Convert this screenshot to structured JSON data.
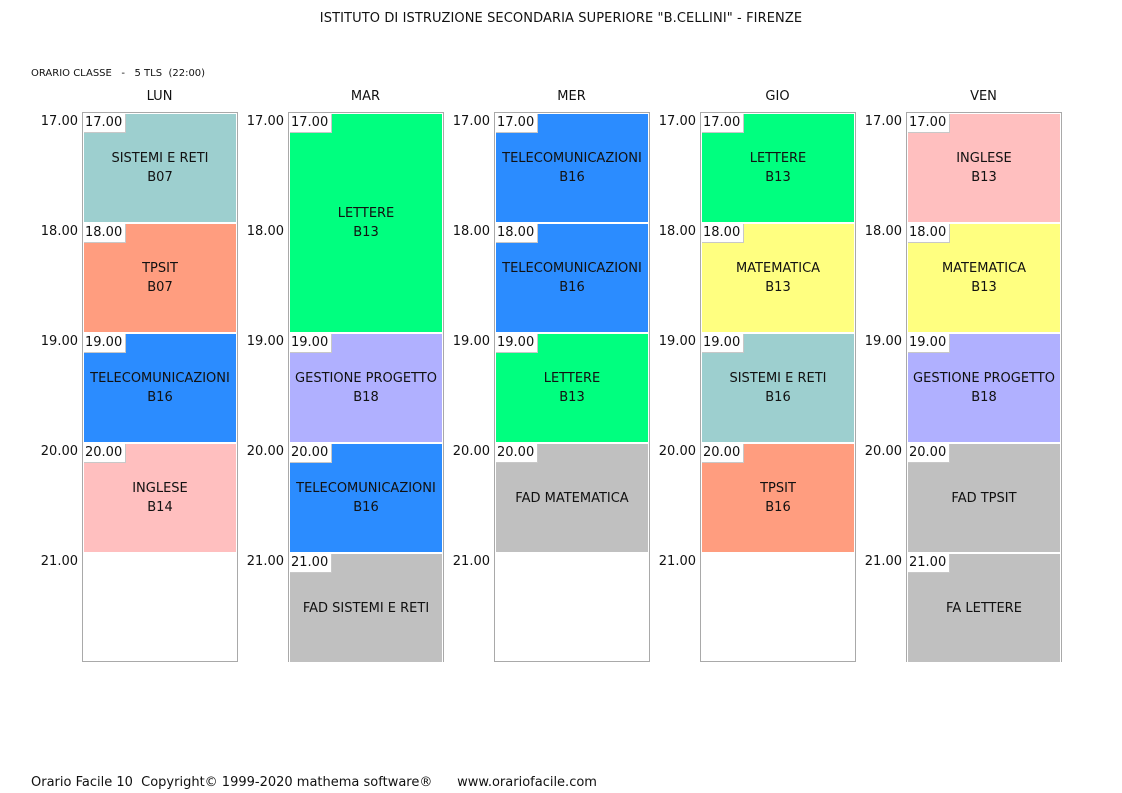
{
  "header": {
    "title": "ISTITUTO DI ISTRUZIONE SECONDARIA SUPERIORE \"B.CELLINI\" - FIRENZE",
    "class_info": "ORARIO CLASSE   -   5 TLS  (22:00)"
  },
  "hours": [
    "17.00",
    "18.00",
    "19.00",
    "20.00",
    "21.00"
  ],
  "colors": {
    "sistemi": "#9dcfcf",
    "tpsit": "#ff9d7f",
    "telecom": "#2b8cff",
    "inglese": "#ffbfbf",
    "lettere": "#00ff7f",
    "gestione": "#b0b0ff",
    "matematica": "#ffff80",
    "fad": "#c0c0c0"
  },
  "days": [
    {
      "name": "LUN",
      "lessons": [
        {
          "start": 0,
          "span": 1,
          "time": "17.00",
          "subject": "SISTEMI E RETI",
          "room": "B07",
          "color": "sistemi"
        },
        {
          "start": 1,
          "span": 1,
          "time": "18.00",
          "subject": "TPSIT",
          "room": "B07",
          "color": "tpsit"
        },
        {
          "start": 2,
          "span": 1,
          "time": "19.00",
          "subject": "TELECOMUNICAZIONI",
          "room": "B16",
          "color": "telecom"
        },
        {
          "start": 3,
          "span": 1,
          "time": "20.00",
          "subject": "INGLESE",
          "room": "B14",
          "color": "inglese"
        }
      ]
    },
    {
      "name": "MAR",
      "lessons": [
        {
          "start": 0,
          "span": 2,
          "time": "17.00",
          "subject": "LETTERE",
          "room": "B13",
          "color": "lettere"
        },
        {
          "start": 2,
          "span": 1,
          "time": "19.00",
          "subject": "GESTIONE PROGETTO",
          "room": "B18",
          "color": "gestione"
        },
        {
          "start": 3,
          "span": 1,
          "time": "20.00",
          "subject": "TELECOMUNICAZIONI",
          "room": "B16",
          "color": "telecom"
        },
        {
          "start": 4,
          "span": 1,
          "time": "21.00",
          "subject": "FAD SISTEMI E RETI",
          "room": "",
          "color": "fad"
        }
      ]
    },
    {
      "name": "MER",
      "lessons": [
        {
          "start": 0,
          "span": 1,
          "time": "17.00",
          "subject": "TELECOMUNICAZIONI",
          "room": "B16",
          "color": "telecom"
        },
        {
          "start": 1,
          "span": 1,
          "time": "18.00",
          "subject": "TELECOMUNICAZIONI",
          "room": "B16",
          "color": "telecom"
        },
        {
          "start": 2,
          "span": 1,
          "time": "19.00",
          "subject": "LETTERE",
          "room": "B13",
          "color": "lettere"
        },
        {
          "start": 3,
          "span": 1,
          "time": "20.00",
          "subject": "FAD MATEMATICA",
          "room": "",
          "color": "fad"
        }
      ]
    },
    {
      "name": "GIO",
      "lessons": [
        {
          "start": 0,
          "span": 1,
          "time": "17.00",
          "subject": "LETTERE",
          "room": "B13",
          "color": "lettere"
        },
        {
          "start": 1,
          "span": 1,
          "time": "18.00",
          "subject": "MATEMATICA",
          "room": "B13",
          "color": "matematica"
        },
        {
          "start": 2,
          "span": 1,
          "time": "19.00",
          "subject": "SISTEMI E RETI",
          "room": "B16",
          "color": "sistemi"
        },
        {
          "start": 3,
          "span": 1,
          "time": "20.00",
          "subject": "TPSIT",
          "room": "B16",
          "color": "tpsit"
        }
      ]
    },
    {
      "name": "VEN",
      "lessons": [
        {
          "start": 0,
          "span": 1,
          "time": "17.00",
          "subject": "INGLESE",
          "room": "B13",
          "color": "inglese"
        },
        {
          "start": 1,
          "span": 1,
          "time": "18.00",
          "subject": "MATEMATICA",
          "room": "B13",
          "color": "matematica"
        },
        {
          "start": 2,
          "span": 1,
          "time": "19.00",
          "subject": "GESTIONE PROGETTO",
          "room": "B18",
          "color": "gestione"
        },
        {
          "start": 3,
          "span": 1,
          "time": "20.00",
          "subject": "FAD TPSIT",
          "room": "",
          "color": "fad"
        },
        {
          "start": 4,
          "span": 1,
          "time": "21.00",
          "subject": "FA LETTERE",
          "room": "",
          "color": "fad"
        }
      ]
    }
  ],
  "footer": {
    "text": "Orario Facile 10  Copyright© 1999-2020 mathema software®      www.orariofacile.com"
  }
}
